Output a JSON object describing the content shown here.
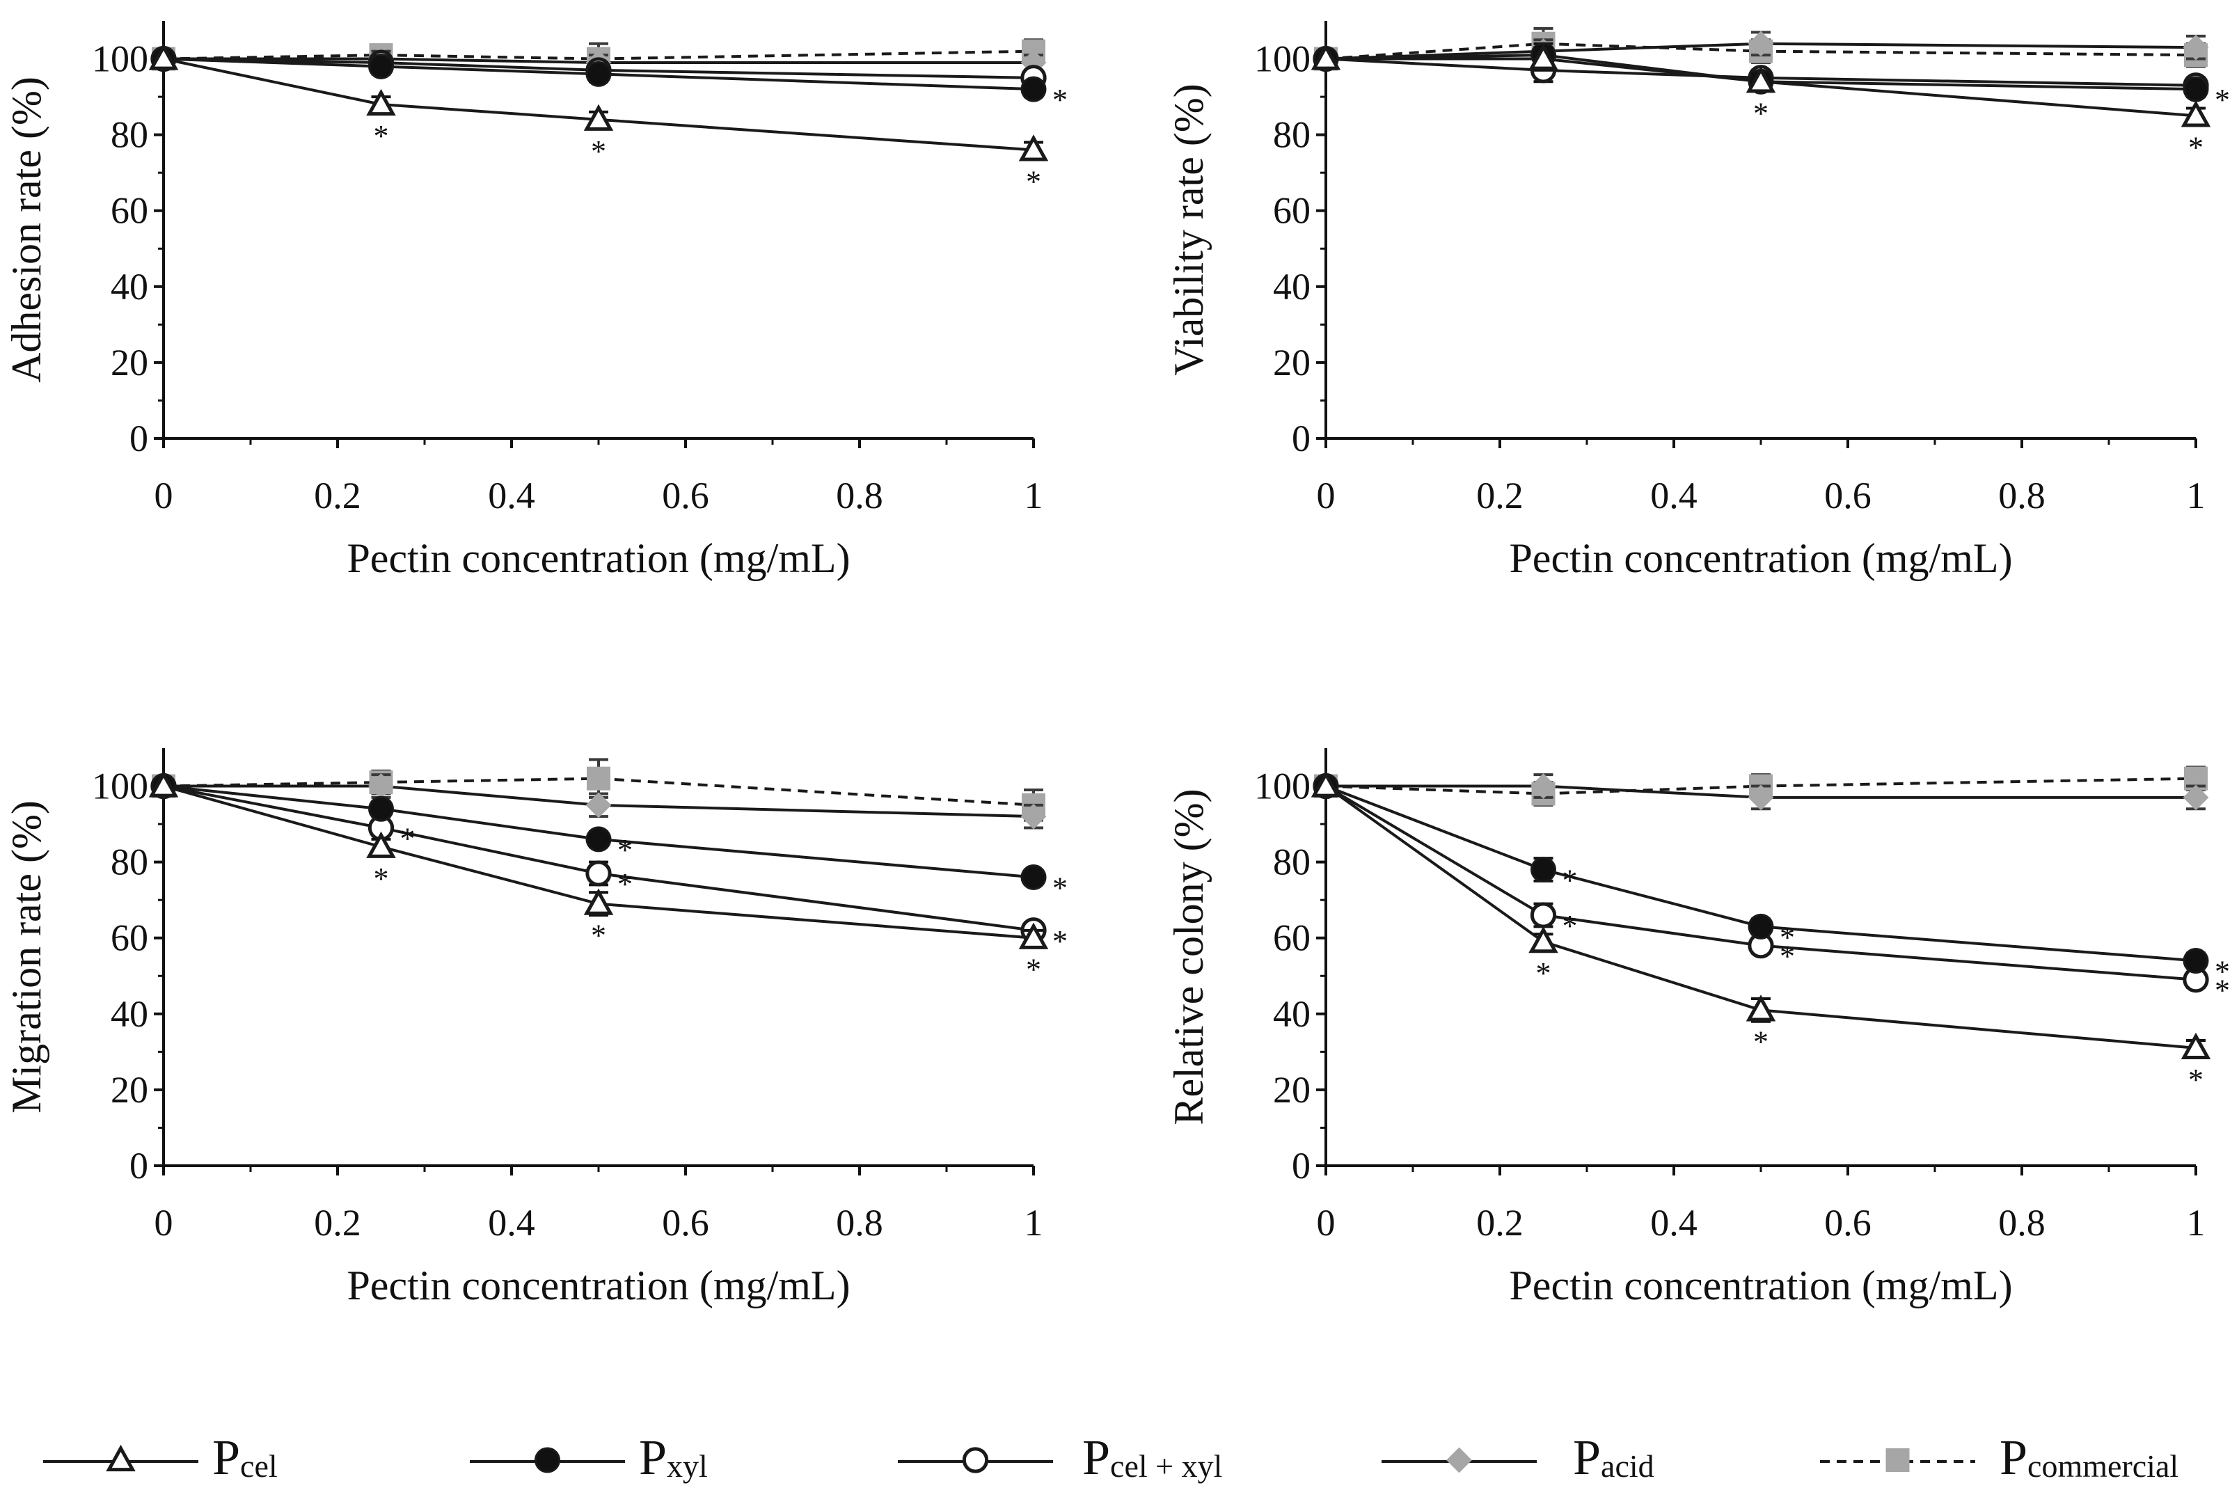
{
  "chart_data": [
    {
      "type": "line",
      "xlabel": "Pectin concentration (mg/mL)",
      "ylabel": "Adhesion rate (%)",
      "xlim": [
        0,
        1
      ],
      "ylim": [
        0,
        110
      ],
      "xticks": [
        "0",
        "0.2",
        "0.4",
        "0.6",
        "0.8",
        "1"
      ],
      "yticks": [
        "0",
        "20",
        "40",
        "60",
        "80",
        "100"
      ],
      "grid": false,
      "x": [
        0,
        0.25,
        0.5,
        1
      ],
      "series": [
        {
          "id": "Pcel",
          "values": [
            100,
            88,
            84,
            76
          ],
          "err": [
            0,
            2,
            2,
            2
          ],
          "sig": [
            false,
            true,
            true,
            true
          ]
        },
        {
          "id": "Pxyl",
          "values": [
            100,
            98,
            96,
            92
          ],
          "err": [
            0,
            2,
            2,
            2
          ],
          "sig": [
            false,
            false,
            false,
            true
          ]
        },
        {
          "id": "Pcelxyl",
          "values": [
            100,
            99,
            97,
            95
          ],
          "err": [
            0,
            2,
            2,
            2
          ],
          "sig": [
            false,
            false,
            false,
            false
          ]
        },
        {
          "id": "Pacid",
          "values": [
            100,
            100,
            99,
            99
          ],
          "err": [
            0,
            2,
            2,
            2
          ],
          "sig": [
            false,
            false,
            false,
            false
          ]
        },
        {
          "id": "Pcommercial",
          "values": [
            100,
            101,
            100,
            102
          ],
          "err": [
            0,
            2,
            4,
            3
          ],
          "sig": [
            false,
            false,
            false,
            false
          ]
        }
      ]
    },
    {
      "type": "line",
      "xlabel": "Pectin concentration (mg/mL)",
      "ylabel": "Viability rate (%)",
      "xlim": [
        0,
        1
      ],
      "ylim": [
        0,
        110
      ],
      "xticks": [
        "0",
        "0.2",
        "0.4",
        "0.6",
        "0.8",
        "1"
      ],
      "yticks": [
        "0",
        "20",
        "40",
        "60",
        "80",
        "100"
      ],
      "grid": false,
      "x": [
        0,
        0.25,
        0.5,
        1
      ],
      "series": [
        {
          "id": "Pcel",
          "values": [
            100,
            100,
            94,
            85
          ],
          "err": [
            0,
            3,
            2,
            2
          ],
          "sig": [
            false,
            false,
            true,
            true
          ]
        },
        {
          "id": "Pxyl",
          "values": [
            100,
            101,
            94,
            92
          ],
          "err": [
            0,
            3,
            2,
            2
          ],
          "sig": [
            false,
            false,
            false,
            true
          ]
        },
        {
          "id": "Pcelxyl",
          "values": [
            100,
            97,
            95,
            93
          ],
          "err": [
            0,
            3,
            2,
            2
          ],
          "sig": [
            false,
            false,
            false,
            false
          ]
        },
        {
          "id": "Pacid",
          "values": [
            100,
            102,
            104,
            103
          ],
          "err": [
            0,
            3,
            3,
            3
          ],
          "sig": [
            false,
            false,
            false,
            false
          ]
        },
        {
          "id": "Pcommercial",
          "values": [
            100,
            104,
            102,
            101
          ],
          "err": [
            0,
            4,
            3,
            3
          ],
          "sig": [
            false,
            false,
            false,
            false
          ]
        }
      ]
    },
    {
      "type": "line",
      "xlabel": "Pectin concentration (mg/mL)",
      "ylabel": "Migration rate (%)",
      "xlim": [
        0,
        1
      ],
      "ylim": [
        0,
        110
      ],
      "xticks": [
        "0",
        "0.2",
        "0.4",
        "0.6",
        "0.8",
        "1"
      ],
      "yticks": [
        "0",
        "20",
        "40",
        "60",
        "80",
        "100"
      ],
      "grid": false,
      "x": [
        0,
        0.25,
        0.5,
        1
      ],
      "series": [
        {
          "id": "Pcel",
          "values": [
            100,
            84,
            69,
            60
          ],
          "err": [
            0,
            2,
            3,
            2
          ],
          "sig": [
            false,
            true,
            true,
            true
          ]
        },
        {
          "id": "Pxyl",
          "values": [
            100,
            94,
            86,
            76
          ],
          "err": [
            0,
            2,
            2,
            1
          ],
          "sig": [
            false,
            false,
            true,
            true
          ]
        },
        {
          "id": "Pcelxyl",
          "values": [
            100,
            89,
            77,
            62
          ],
          "err": [
            0,
            2,
            3,
            2
          ],
          "sig": [
            false,
            true,
            true,
            true
          ]
        },
        {
          "id": "Pacid",
          "values": [
            100,
            100,
            95,
            92
          ],
          "err": [
            0,
            3,
            3,
            3
          ],
          "sig": [
            false,
            false,
            false,
            false
          ]
        },
        {
          "id": "Pcommercial",
          "values": [
            100,
            101,
            102,
            95
          ],
          "err": [
            0,
            3,
            5,
            4
          ],
          "sig": [
            false,
            false,
            false,
            false
          ]
        }
      ]
    },
    {
      "type": "line",
      "xlabel": "Pectin concentration (mg/mL)",
      "ylabel": "Relative colony (%)",
      "xlim": [
        0,
        1
      ],
      "ylim": [
        0,
        110
      ],
      "xticks": [
        "0",
        "0.2",
        "0.4",
        "0.6",
        "0.8",
        "1"
      ],
      "yticks": [
        "0",
        "20",
        "40",
        "60",
        "80",
        "100"
      ],
      "grid": false,
      "x": [
        0,
        0.25,
        0.5,
        1
      ],
      "series": [
        {
          "id": "Pcel",
          "values": [
            100,
            59,
            41,
            31
          ],
          "err": [
            0,
            2,
            3,
            2
          ],
          "sig": [
            false,
            true,
            true,
            true
          ]
        },
        {
          "id": "Pxyl",
          "values": [
            100,
            78,
            63,
            54
          ],
          "err": [
            0,
            3,
            2,
            2
          ],
          "sig": [
            false,
            true,
            true,
            true
          ]
        },
        {
          "id": "Pcelxyl",
          "values": [
            100,
            66,
            58,
            49
          ],
          "err": [
            0,
            3,
            2,
            2
          ],
          "sig": [
            false,
            true,
            true,
            true
          ]
        },
        {
          "id": "Pacid",
          "values": [
            100,
            100,
            97,
            97
          ],
          "err": [
            0,
            3,
            3,
            3
          ],
          "sig": [
            false,
            false,
            false,
            false
          ]
        },
        {
          "id": "Pcommercial",
          "values": [
            100,
            98,
            100,
            102
          ],
          "err": [
            0,
            3,
            3,
            3
          ],
          "sig": [
            false,
            false,
            false,
            false
          ]
        }
      ]
    }
  ],
  "styles": {
    "Pcel": {
      "marker": "triangle-open",
      "line": "solid",
      "color": "#1a1a1a",
      "fill": "#ffffff"
    },
    "Pxyl": {
      "marker": "circle-filled",
      "line": "solid",
      "color": "#1a1a1a",
      "fill": "#111111"
    },
    "Pcelxyl": {
      "marker": "circle-open",
      "line": "solid",
      "color": "#1a1a1a",
      "fill": "#ffffff"
    },
    "Pacid": {
      "marker": "diamond-filled",
      "line": "solid",
      "color": "#1a1a1a",
      "fill": "#a6a6a6"
    },
    "Pcommercial": {
      "marker": "square-filled",
      "line": "dashed",
      "color": "#1a1a1a",
      "fill": "#a6a6a6"
    }
  },
  "significance_marker": "*",
  "legend": [
    {
      "id": "Pcel",
      "main": "P",
      "sub": "cel"
    },
    {
      "id": "Pxyl",
      "main": "P",
      "sub": "xyl"
    },
    {
      "id": "Pcelxyl",
      "main": "P",
      "sub": "cel + xyl"
    },
    {
      "id": "Pacid",
      "main": "P",
      "sub": "acid"
    },
    {
      "id": "Pcommercial",
      "main": "P",
      "sub": "commercial"
    }
  ]
}
